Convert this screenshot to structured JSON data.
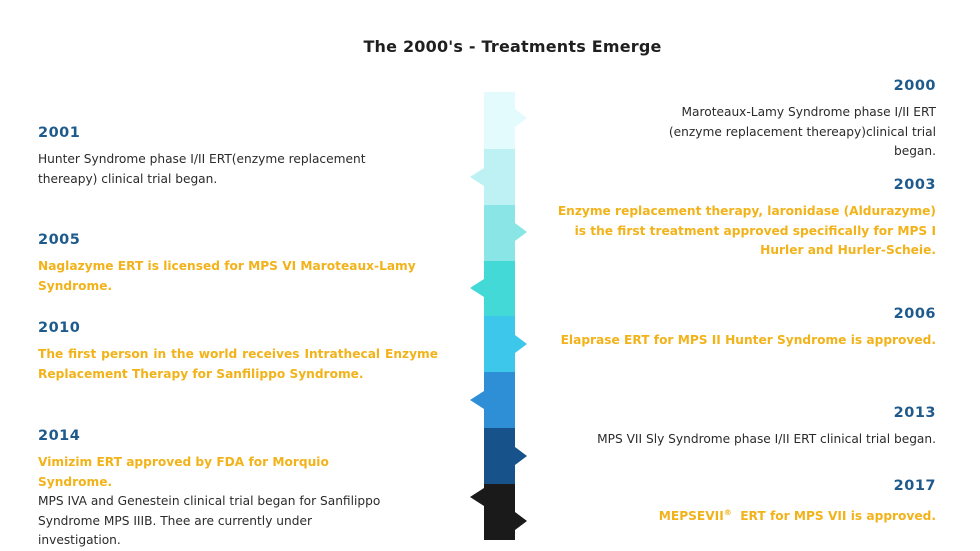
{
  "title": "The 2000's - Treatments Emerge",
  "timeline": {
    "segment_colors": [
      "#e4fbfd",
      "#bdf1f4",
      "#8ae6e6",
      "#43d9d6",
      "#3cc7eb",
      "#2f8fd6",
      "#17538a",
      "#1a1a1a"
    ]
  },
  "entries": {
    "y2000": {
      "year": "2000",
      "text": "Maroteaux-Lamy Syndrome phase I/II ERT (enzyme replacement thereapy)clinical trial began."
    },
    "y2001": {
      "year": "2001",
      "text": "Hunter Syndrome phase I/II ERT(enzyme replacement thereapy) clinical trial began."
    },
    "y2003": {
      "year": "2003",
      "text": "Enzyme replacement therapy, laronidase (Aldurazyme) is the first treatment approved specifically for MPS I Hurler and Hurler-Scheie."
    },
    "y2005": {
      "year": "2005",
      "text": "Naglazyme ERT is licensed for MPS VI Maroteaux-Lamy Syndrome."
    },
    "y2006": {
      "year": "2006",
      "text": "Elaprase ERT for MPS II Hunter Syndrome is approved."
    },
    "y2010": {
      "year": "2010",
      "text": "The first person in the world receives Intrathecal Enzyme Replacement Therapy for Sanfilippo Syndrome."
    },
    "y2013": {
      "year": "2013",
      "text": "MPS VII Sly Syndrome phase I/II ERT clinical trial began."
    },
    "y2014": {
      "year": "2014",
      "text_highlight": "Vimizim ERT approved by FDA for Morquio Syndrome.",
      "text": "MPS IVA and Genestein clinical trial began for Sanfilippo Syndrome MPS IIIB. Thee are currently under investigation."
    },
    "y2017": {
      "year": "2017",
      "text_pre": "MEPSEVII",
      "text_sup": "®",
      "text_post": "  ERT for MPS VII is approved."
    }
  }
}
